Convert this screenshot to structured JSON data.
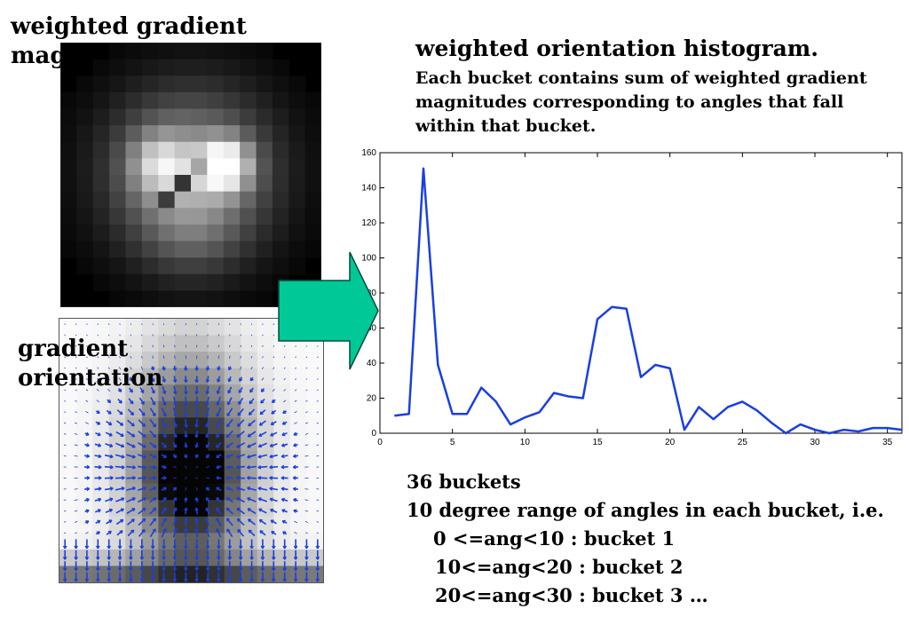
{
  "labels": {
    "magnitude": "weighted gradient magnitude",
    "magnitude_line1": "weighted gradient",
    "magnitude_line2": "magnitude",
    "orientation_line1": "gradient",
    "orientation_line2": "orientation"
  },
  "histogram": {
    "title": "weighted orientation histogram.",
    "description": "Each bucket contains sum of weighted gradient magnitudes corresponding to angles that fall within that bucket."
  },
  "notes": {
    "line1": "36 buckets",
    "line2": "10 degree range of angles in each bucket, i.e.",
    "line3": "0 <=ang<10 : bucket 1",
    "line4": "10<=ang<20 : bucket 2",
    "line5": "20<=ang<30 : bucket 3 …"
  },
  "colors": {
    "line": "#1a3fe0",
    "arrow_fill": "#00c896",
    "arrow_stroke": "#004d3a",
    "vector": "#1a3fe0"
  },
  "chart_data": {
    "type": "line",
    "x": [
      1,
      2,
      3,
      4,
      5,
      6,
      7,
      8,
      9,
      10,
      11,
      12,
      13,
      14,
      15,
      16,
      17,
      18,
      19,
      20,
      21,
      22,
      23,
      24,
      25,
      26,
      27,
      28,
      29,
      30,
      31,
      32,
      33,
      34,
      35,
      36
    ],
    "y": [
      10,
      11,
      151,
      39,
      11,
      11,
      26,
      18,
      5,
      9,
      12,
      23,
      21,
      20,
      65,
      72,
      71,
      32,
      39,
      37,
      2,
      15,
      8,
      15,
      18,
      13,
      6,
      0,
      5,
      2,
      0,
      2,
      1,
      3,
      3,
      2
    ],
    "xlim": [
      0,
      36
    ],
    "ylim": [
      0,
      160
    ],
    "xticks": [
      0,
      5,
      10,
      15,
      20,
      25,
      30,
      35
    ],
    "yticks": [
      0,
      20,
      40,
      60,
      80,
      100,
      120,
      140,
      160
    ],
    "grid": false
  }
}
